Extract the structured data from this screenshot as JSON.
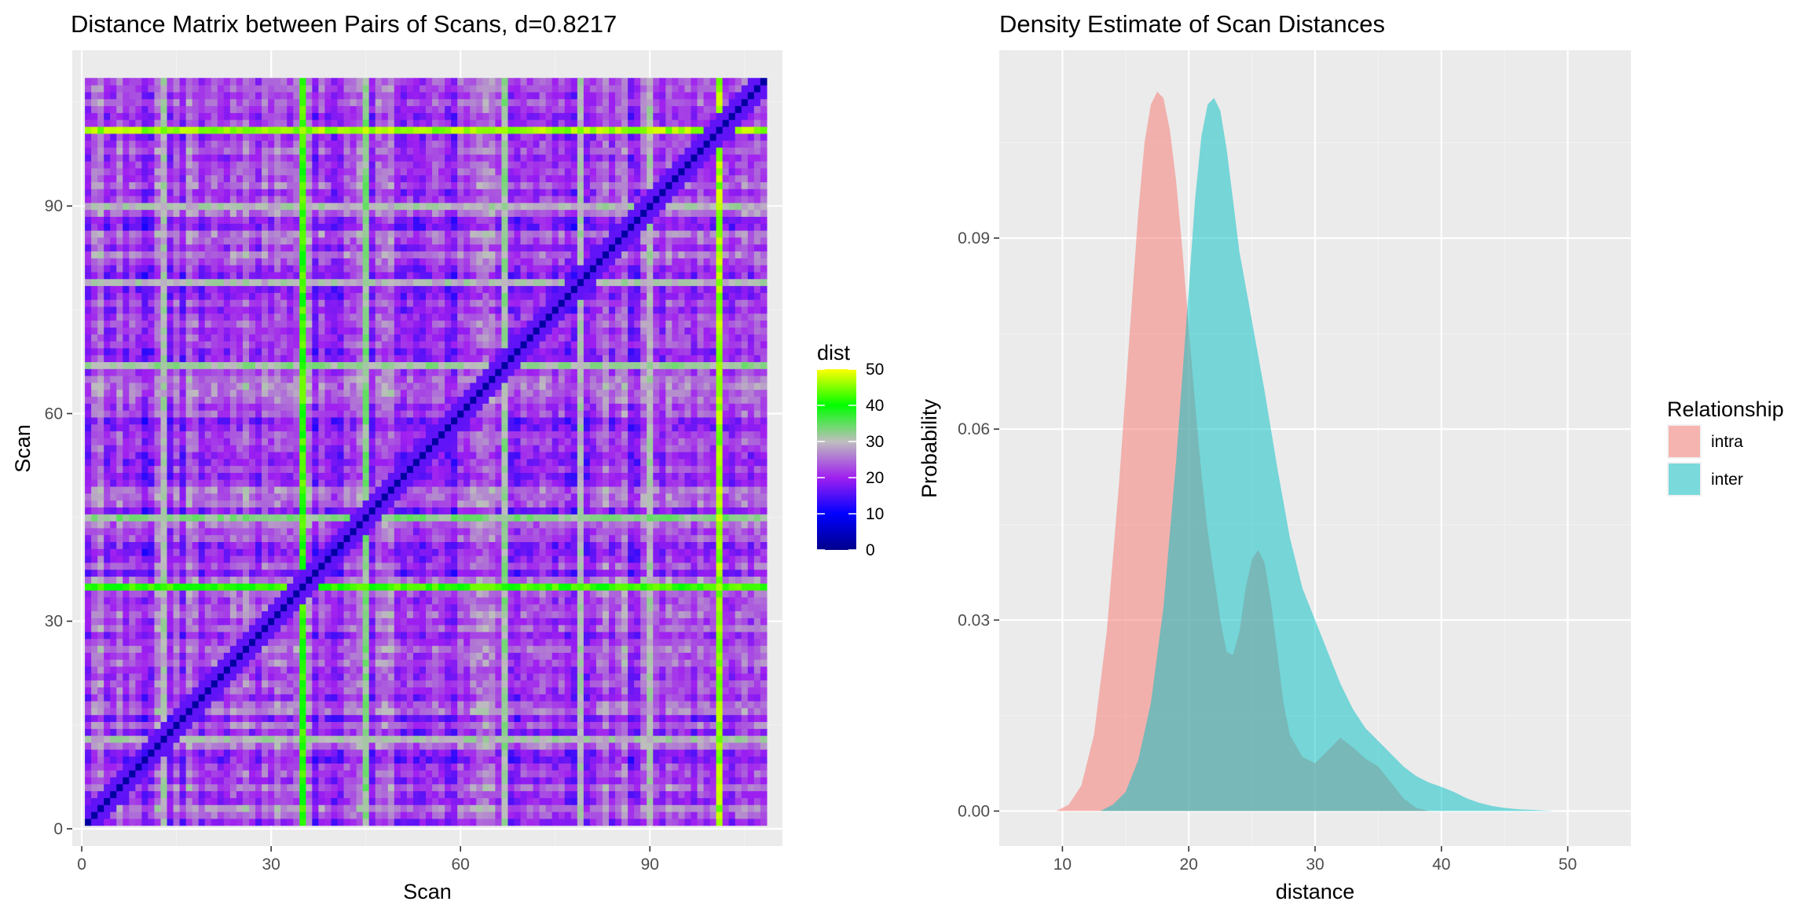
{
  "chart_data": [
    {
      "type": "heatmap",
      "title": "Distance Matrix between Pairs of Scans, d=0.8217",
      "xlabel": "Scan",
      "ylabel": "Scan",
      "xlim": [
        -1.5,
        111
      ],
      "ylim": [
        -2.5,
        112.5
      ],
      "xticks": [
        0,
        30,
        60,
        90
      ],
      "yticks": [
        0,
        30,
        60,
        90
      ],
      "n_scans": 108,
      "value_range": [
        0,
        50
      ],
      "base_value": 22,
      "diagonal_value": 2,
      "bright_scans": [
        {
          "scan": 35,
          "value": 42
        },
        {
          "scan": 101,
          "value": 46
        },
        {
          "scan": 45,
          "value": 33
        },
        {
          "scan": 67,
          "value": 32
        },
        {
          "scan": 13,
          "value": 30
        },
        {
          "scan": 79,
          "value": 30
        },
        {
          "scan": 90,
          "value": 30
        }
      ],
      "legend": {
        "title": "dist",
        "ticks": [
          0,
          10,
          20,
          30,
          40,
          50
        ],
        "stops": [
          {
            "value": 0,
            "color": "#00008b"
          },
          {
            "value": 10,
            "color": "#0000ff"
          },
          {
            "value": 20,
            "color": "#a020f0"
          },
          {
            "value": 30,
            "color": "#bebebe"
          },
          {
            "value": 40,
            "color": "#00ff00"
          },
          {
            "value": 50,
            "color": "#ffff00"
          }
        ]
      }
    },
    {
      "type": "area",
      "title": "Density Estimate of Scan Distances",
      "xlabel": "distance",
      "ylabel": "Probability",
      "xlim": [
        5,
        55
      ],
      "ylim": [
        -0.0055,
        0.1195
      ],
      "xticks": [
        10,
        20,
        30,
        40,
        50
      ],
      "yticks": [
        0.0,
        0.03,
        0.06,
        0.09
      ],
      "ytick_labels": [
        "0.00",
        "0.03",
        "0.06",
        "0.09"
      ],
      "legend": {
        "title": "Relationship",
        "placement": "right"
      },
      "series": [
        {
          "name": "intra",
          "color": "#f8766d",
          "x": [
            9.5,
            10.5,
            11.5,
            12.5,
            13.5,
            14.5,
            15.5,
            16.0,
            16.5,
            17.0,
            17.5,
            18.0,
            18.5,
            19.0,
            19.5,
            20.0,
            20.5,
            21.0,
            21.5,
            22.0,
            22.5,
            23.0,
            23.5,
            24.0,
            24.5,
            25.0,
            25.5,
            26.0,
            26.5,
            27.0,
            27.5,
            28.0,
            29.0,
            30.0,
            31.0,
            32.0,
            33.0,
            34.0,
            35.0,
            36.0,
            37.0,
            38.0,
            39.0
          ],
          "y": [
            0.0,
            0.001,
            0.004,
            0.012,
            0.028,
            0.052,
            0.08,
            0.094,
            0.105,
            0.111,
            0.113,
            0.112,
            0.107,
            0.099,
            0.088,
            0.076,
            0.064,
            0.053,
            0.044,
            0.037,
            0.03,
            0.025,
            0.0245,
            0.028,
            0.035,
            0.0395,
            0.041,
            0.039,
            0.033,
            0.025,
            0.017,
            0.012,
            0.0085,
            0.0075,
            0.0095,
            0.0115,
            0.01,
            0.0082,
            0.007,
            0.0045,
            0.002,
            0.0005,
            0.0
          ]
        },
        {
          "name": "inter",
          "color": "#00bfc4",
          "x": [
            13.0,
            14.0,
            15.0,
            16.0,
            17.0,
            18.0,
            19.0,
            20.0,
            20.5,
            21.0,
            21.5,
            22.0,
            22.5,
            23.0,
            23.5,
            24.0,
            25.0,
            26.0,
            27.0,
            28.0,
            29.0,
            30.0,
            31.0,
            32.0,
            33.0,
            34.0,
            35.0,
            36.0,
            37.0,
            38.0,
            39.0,
            40.0,
            41.0,
            42.0,
            43.0,
            44.0,
            45.0,
            46.0,
            47.0,
            48.0,
            49.0
          ],
          "y": [
            0.0,
            0.001,
            0.003,
            0.008,
            0.017,
            0.032,
            0.055,
            0.082,
            0.096,
            0.106,
            0.111,
            0.112,
            0.11,
            0.104,
            0.096,
            0.088,
            0.077,
            0.066,
            0.054,
            0.043,
            0.035,
            0.03,
            0.025,
            0.02,
            0.016,
            0.013,
            0.011,
            0.009,
            0.007,
            0.0055,
            0.0045,
            0.0038,
            0.003,
            0.002,
            0.0013,
            0.0008,
            0.0005,
            0.0003,
            0.0002,
            0.0001,
            0.0
          ]
        }
      ]
    }
  ]
}
